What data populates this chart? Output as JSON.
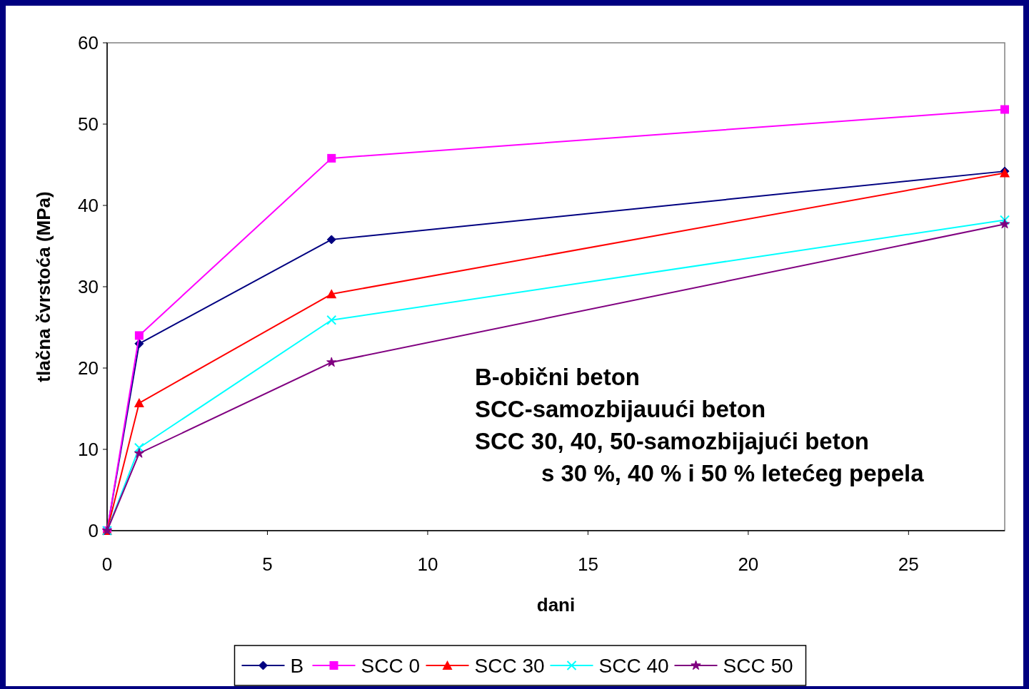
{
  "chart_data": {
    "type": "line",
    "xlabel": "dani",
    "ylabel": "tlačna čvrstoća (MPa)",
    "x": [
      0,
      1,
      7,
      28
    ],
    "series": [
      {
        "name": "B",
        "color": "#000080",
        "marker": "diamond",
        "values": [
          0,
          23,
          35.8,
          44.2
        ]
      },
      {
        "name": "SCC 0",
        "color": "#ff00ff",
        "marker": "square",
        "values": [
          0,
          24,
          45.8,
          51.8
        ]
      },
      {
        "name": "SCC 30",
        "color": "#ff0000",
        "marker": "triangle",
        "values": [
          0,
          15.7,
          29.1,
          44
        ]
      },
      {
        "name": "SCC 40",
        "color": "#00ffff",
        "marker": "cross",
        "values": [
          0,
          10.2,
          25.9,
          38.2
        ]
      },
      {
        "name": "SCC 50",
        "color": "#800080",
        "marker": "star",
        "values": [
          0,
          9.5,
          20.7,
          37.7
        ]
      }
    ],
    "xlim": [
      0,
      28
    ],
    "xticks": [
      0,
      5,
      10,
      15,
      20,
      25
    ],
    "ylim": [
      0,
      60
    ],
    "yticks": [
      0,
      10,
      20,
      30,
      40,
      50,
      60
    ],
    "grid": false,
    "legend": "bottom",
    "annotations": [
      "B-obični beton",
      "SCC-samozbijauući beton",
      "SCC 30, 40, 50-samozbijajući beton",
      "s 30 %, 40 % i 50 % letećeg pepela"
    ]
  }
}
